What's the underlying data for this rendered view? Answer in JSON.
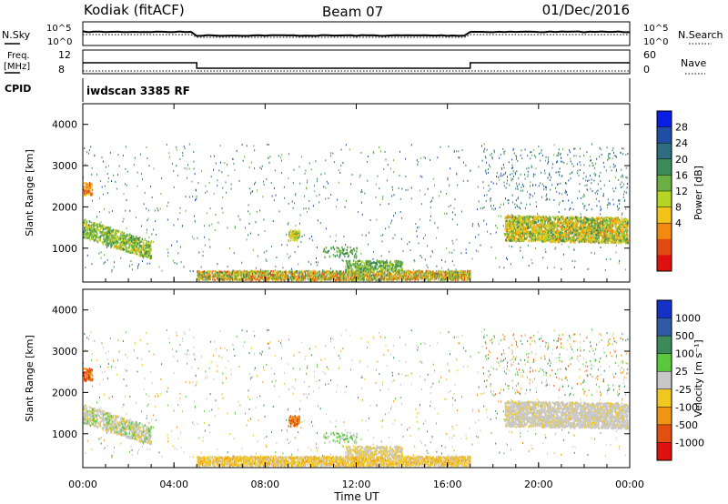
{
  "header": {
    "station": "Kodiak (fitACF)",
    "beam": "Beam 07",
    "date": "01/Dec/2016"
  },
  "summary_panels": {
    "nsky_label": "N.Sky",
    "nsky_ticks": [
      "10^5",
      "10^0"
    ],
    "nsearch_label": "N.Search",
    "freq_label_1": "Freq.",
    "freq_label_2": "[MHz]",
    "freq_ticks": [
      "12",
      "8"
    ],
    "nave_ticks": [
      "60",
      "0"
    ],
    "nave_label": "Nave",
    "cpid_label": "CPID",
    "cpid_value": "iwdscan 3385 RF"
  },
  "chart_data": [
    {
      "type": "heatmap",
      "name": "power",
      "ylabel": "Slant Range [km]",
      "yticks": [
        "4000",
        "3000",
        "2000",
        "1000"
      ],
      "ylim": [
        180,
        4500
      ],
      "xlim": [
        0,
        24
      ],
      "xticks": [
        "00:00",
        "04:00",
        "08:00",
        "12:00",
        "16:00",
        "20:00",
        "00:00"
      ],
      "colorbar": {
        "label": "Power [dB]",
        "ticks": [
          "28",
          "24",
          "20",
          "16",
          "12",
          "8",
          "4"
        ],
        "colors": [
          "#0a1ee6",
          "#1f4fa5",
          "#2e6e80",
          "#3d8a5a",
          "#6cb043",
          "#b5d424",
          "#f2c318",
          "#f28a10",
          "#e24a10",
          "#e01010"
        ]
      },
      "regions": [
        {
          "t0": 0.0,
          "t1": 3.0,
          "r0": 800,
          "r1": 1800,
          "note": "band descending 1400->800 km"
        },
        {
          "t0": 0.0,
          "t1": 0.4,
          "r0": 2200,
          "r1": 2600
        },
        {
          "t0": 5.0,
          "t1": 17.0,
          "r0": 180,
          "r1": 450
        },
        {
          "t0": 11.5,
          "t1": 14.0,
          "r0": 450,
          "r1": 700
        },
        {
          "t0": 18.5,
          "t1": 24.0,
          "r0": 1100,
          "r1": 1800
        },
        {
          "t0": 9.0,
          "t1": 9.5,
          "r0": 1100,
          "r1": 1400
        },
        {
          "t0": 0.0,
          "t1": 24.0,
          "r0": 800,
          "r1": 3500,
          "note": "sparse scatter"
        }
      ]
    },
    {
      "type": "heatmap",
      "name": "velocity",
      "ylabel": "Slant Range [km]",
      "yticks": [
        "4000",
        "3000",
        "2000",
        "1000"
      ],
      "ylim": [
        180,
        4500
      ],
      "xlim": [
        0,
        24
      ],
      "xlabel": "Time UT",
      "xticks": [
        "00:00",
        "04:00",
        "08:00",
        "12:00",
        "16:00",
        "20:00",
        "00:00"
      ],
      "colorbar": {
        "label": "Velocity [m s⁻¹]",
        "ticks": [
          "1000",
          "500",
          "100",
          "25",
          "-25",
          "-100",
          "-500",
          "-1000"
        ],
        "colors": [
          "#1432c8",
          "#2f5aa6",
          "#3c8a5a",
          "#5ac83c",
          "#c8c8c8",
          "#f0c820",
          "#f09614",
          "#e2500f",
          "#e01010"
        ]
      }
    }
  ]
}
